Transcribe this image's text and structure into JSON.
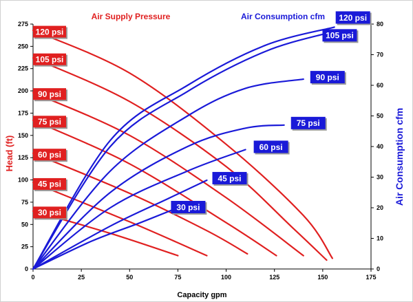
{
  "chart_data": {
    "type": "line",
    "title_left": "Air Supply Pressure",
    "title_right": "Air Consumption cfm",
    "xlabel": "Capacity gpm",
    "ylabel_left": "Head (ft)",
    "ylabel_right": "Air Consumption cfm",
    "xlim": [
      0,
      175
    ],
    "ylim_left": [
      0,
      275
    ],
    "ylim_right": [
      0,
      80
    ],
    "x_ticks": [
      "0",
      "25",
      "50",
      "75",
      "100",
      "125",
      "150",
      "175"
    ],
    "y_left_ticks": [
      "0",
      "25",
      "50",
      "75",
      "100",
      "125",
      "150",
      "175",
      "200",
      "225",
      "250",
      "275"
    ],
    "y_right_ticks": [
      "0",
      "10",
      "20",
      "30",
      "40",
      "50",
      "60",
      "70",
      "80"
    ],
    "grid": false,
    "colors": {
      "head": "#e02020",
      "air": "#1a1ad8"
    },
    "head_series": [
      {
        "name": "120 psi",
        "points": [
          [
            0,
            268
          ],
          [
            50,
            220
          ],
          [
            100,
            140
          ],
          [
            140,
            60
          ],
          [
            155,
            12
          ]
        ]
      },
      {
        "name": "105 psi",
        "points": [
          [
            0,
            237
          ],
          [
            50,
            188
          ],
          [
            100,
            115
          ],
          [
            135,
            45
          ],
          [
            152,
            10
          ]
        ]
      },
      {
        "name": "90 psi",
        "points": [
          [
            0,
            198
          ],
          [
            50,
            150
          ],
          [
            100,
            80
          ],
          [
            140,
            15
          ]
        ]
      },
      {
        "name": "75 psi",
        "points": [
          [
            0,
            167
          ],
          [
            50,
            118
          ],
          [
            100,
            52
          ],
          [
            126,
            15
          ]
        ]
      },
      {
        "name": "60 psi",
        "points": [
          [
            0,
            130
          ],
          [
            50,
            85
          ],
          [
            90,
            43
          ],
          [
            111,
            17
          ]
        ]
      },
      {
        "name": "45 psi",
        "points": [
          [
            0,
            97
          ],
          [
            50,
            53
          ],
          [
            90,
            15
          ]
        ]
      },
      {
        "name": "30 psi",
        "points": [
          [
            0,
            65
          ],
          [
            40,
            40
          ],
          [
            75,
            15
          ]
        ]
      }
    ],
    "air_series": [
      {
        "name": "120 psi",
        "points": [
          [
            0,
            0
          ],
          [
            40,
            42
          ],
          [
            80,
            60
          ],
          [
            120,
            73
          ],
          [
            156,
            79
          ]
        ]
      },
      {
        "name": "105 psi",
        "points": [
          [
            0,
            0
          ],
          [
            40,
            40
          ],
          [
            80,
            58
          ],
          [
            120,
            71
          ],
          [
            152,
            77
          ]
        ]
      },
      {
        "name": "90 psi",
        "points": [
          [
            0,
            0
          ],
          [
            40,
            32
          ],
          [
            80,
            50
          ],
          [
            110,
            59
          ],
          [
            140,
            62
          ]
        ]
      },
      {
        "name": "75 psi",
        "points": [
          [
            0,
            0
          ],
          [
            40,
            25
          ],
          [
            80,
            40
          ],
          [
            110,
            46
          ],
          [
            130,
            47
          ]
        ]
      },
      {
        "name": "60 psi",
        "points": [
          [
            0,
            0
          ],
          [
            40,
            20
          ],
          [
            80,
            32
          ],
          [
            110,
            39
          ]
        ]
      },
      {
        "name": "45 psi",
        "points": [
          [
            0,
            0
          ],
          [
            40,
            14
          ],
          [
            70,
            23
          ],
          [
            90,
            29
          ]
        ]
      },
      {
        "name": "30 psi",
        "points": [
          [
            0,
            0
          ],
          [
            30,
            9
          ],
          [
            55,
            15
          ],
          [
            75,
            20
          ]
        ]
      }
    ]
  }
}
